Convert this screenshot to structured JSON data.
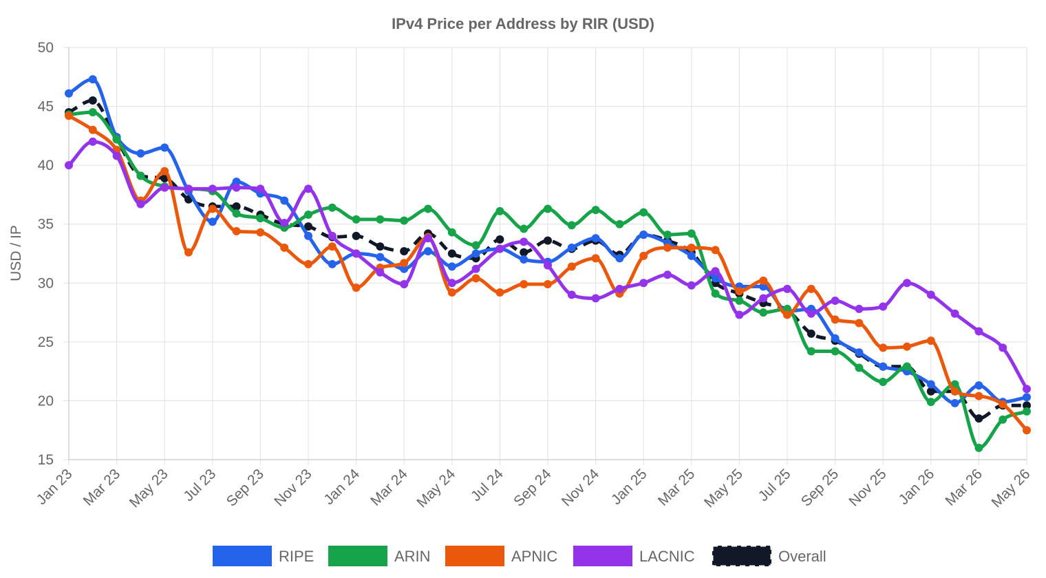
{
  "chart_data": {
    "type": "line",
    "title": "IPv4 Price per Address by RIR (USD)",
    "xlabel": "",
    "ylabel": "USD / IP",
    "ylim": [
      15,
      50
    ],
    "yticks": [
      15,
      20,
      25,
      30,
      35,
      40,
      45,
      50
    ],
    "grid": true,
    "legend_position": "bottom",
    "categories": [
      "Jan 23",
      "Feb 23",
      "Mar 23",
      "Apr 23",
      "May 23",
      "Jun 23",
      "Jul 23",
      "Aug 23",
      "Sep 23",
      "Oct 23",
      "Nov 23",
      "Dec 23",
      "Jan 24",
      "Feb 24",
      "Mar 24",
      "Apr 24",
      "May 24",
      "Jun 24",
      "Jul 24",
      "Aug 24",
      "Sep 24",
      "Oct 24",
      "Nov 24",
      "Dec 24",
      "Jan 25",
      "Feb 25",
      "Mar 25",
      "Apr 25",
      "May 25",
      "Jun 25",
      "Jul 25",
      "Aug 25",
      "Sep 25",
      "Oct 25",
      "Nov 25",
      "Dec 25",
      "Jan 26",
      "Feb 26",
      "Mar 26",
      "Apr 26",
      "May 26"
    ],
    "x_tick_labels": [
      "Jan 23",
      "Mar 23",
      "May 23",
      "Jul 23",
      "Sep 23",
      "Nov 23",
      "Jan 24",
      "Mar 24",
      "May 24",
      "Jul 24",
      "Sep 24",
      "Nov 24",
      "Jan 25",
      "Mar 25",
      "May 25",
      "Jul 25",
      "Sep 25",
      "Nov 25",
      "Jan 26",
      "Mar 26",
      "May 26"
    ],
    "series": [
      {
        "name": "RIPE",
        "color": "#2563eb",
        "style": "solid",
        "values": [
          46.1,
          47.3,
          42.4,
          41.0,
          41.5,
          37.8,
          35.2,
          38.6,
          37.6,
          37.0,
          34.0,
          31.6,
          32.5,
          32.2,
          31.2,
          32.7,
          31.4,
          32.5,
          32.9,
          32.0,
          31.8,
          33.0,
          33.8,
          32.1,
          34.1,
          33.4,
          32.3,
          30.4,
          29.7,
          29.7,
          27.6,
          27.8,
          25.3,
          24.1,
          22.9,
          22.5,
          21.4,
          19.8,
          21.3,
          19.9,
          20.3
        ]
      },
      {
        "name": "ARIN",
        "color": "#16a34a",
        "style": "solid",
        "values": [
          44.3,
          44.5,
          42.2,
          39.1,
          38.2,
          38.0,
          37.8,
          35.9,
          35.5,
          34.7,
          35.8,
          36.4,
          35.4,
          35.4,
          35.3,
          36.3,
          34.3,
          33.2,
          36.1,
          34.6,
          36.3,
          34.9,
          36.2,
          35.0,
          36.0,
          34.1,
          34.2,
          29.1,
          28.5,
          27.5,
          27.8,
          24.2,
          24.2,
          22.8,
          21.6,
          22.9,
          19.9,
          21.4,
          16.0,
          18.4,
          19.1
        ]
      },
      {
        "name": "APNIC",
        "color": "#ea580c",
        "style": "solid",
        "values": [
          44.2,
          43.0,
          41.3,
          37.0,
          39.5,
          32.6,
          36.3,
          34.4,
          34.3,
          33.0,
          31.6,
          33.1,
          29.6,
          31.3,
          31.7,
          33.9,
          29.2,
          30.4,
          29.2,
          29.9,
          29.9,
          31.4,
          32.1,
          29.1,
          32.3,
          33.0,
          33.0,
          32.8,
          29.3,
          30.2,
          27.3,
          29.5,
          26.9,
          26.6,
          24.5,
          24.6,
          25.1,
          20.8,
          20.4,
          19.7,
          17.5
        ]
      },
      {
        "name": "LACNIC",
        "color": "#9333ea",
        "style": "solid",
        "values": [
          40.0,
          42.0,
          40.8,
          36.7,
          38.1,
          38.0,
          38.0,
          38.1,
          38.0,
          35.1,
          38.0,
          34.0,
          32.5,
          30.9,
          29.9,
          33.8,
          30.0,
          31.2,
          32.9,
          33.5,
          31.5,
          29.0,
          28.7,
          29.5,
          30.0,
          30.7,
          29.8,
          31.0,
          27.3,
          28.7,
          29.5,
          27.4,
          28.5,
          27.8,
          28.0,
          30.0,
          29.0,
          27.4,
          25.9,
          24.5,
          21.0
        ]
      },
      {
        "name": "Overall",
        "color": "#111827",
        "style": "dashed",
        "values": [
          44.5,
          45.5,
          42.2,
          39.1,
          38.9,
          37.1,
          36.5,
          36.5,
          35.8,
          35.0,
          34.8,
          33.9,
          34.0,
          33.1,
          32.7,
          34.2,
          32.5,
          32.1,
          33.7,
          32.6,
          33.6,
          32.9,
          33.6,
          32.4,
          34.1,
          33.6,
          32.6,
          30.0,
          29.1,
          28.3,
          27.7,
          25.7,
          25.1,
          24.0,
          22.9,
          22.9,
          20.8,
          20.8,
          18.5,
          19.6,
          19.6
        ]
      }
    ]
  }
}
